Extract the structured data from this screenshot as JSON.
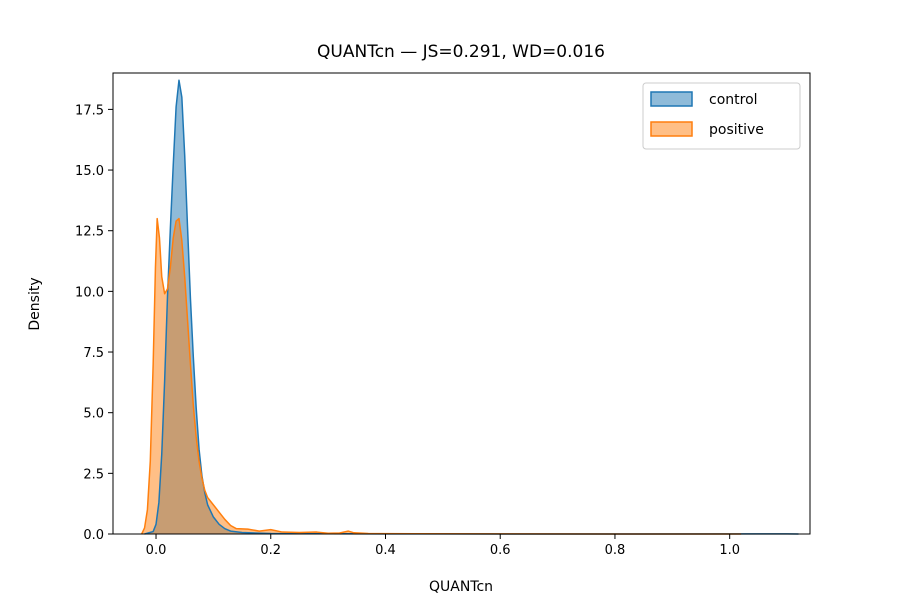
{
  "chart_data": {
    "type": "area",
    "title": "QUANTcn — JS=0.291, WD=0.016",
    "xlabel": "QUANTcn",
    "ylabel": "Density",
    "xlim": [
      -0.075,
      1.14
    ],
    "ylim": [
      0,
      19.0
    ],
    "xticks": [
      0.0,
      0.2,
      0.4,
      0.6,
      0.8,
      1.0
    ],
    "xtick_labels": [
      "0.0",
      "0.2",
      "0.4",
      "0.6",
      "0.8",
      "1.0"
    ],
    "yticks": [
      0.0,
      2.5,
      5.0,
      7.5,
      10.0,
      12.5,
      15.0,
      17.5
    ],
    "ytick_labels": [
      "0.0",
      "2.5",
      "5.0",
      "7.5",
      "10.0",
      "12.5",
      "15.0",
      "17.5"
    ],
    "grid": false,
    "legend_position": "top-right",
    "series": [
      {
        "name": "control",
        "color": "#1f77b4",
        "fill": "#8ab3d6",
        "points": [
          [
            -0.02,
            0
          ],
          [
            -0.005,
            0.1
          ],
          [
            0.0,
            0.4
          ],
          [
            0.005,
            1.3
          ],
          [
            0.01,
            3.3
          ],
          [
            0.015,
            6.3
          ],
          [
            0.02,
            9.8
          ],
          [
            0.025,
            12.6
          ],
          [
            0.03,
            15.2
          ],
          [
            0.035,
            17.6
          ],
          [
            0.04,
            18.7
          ],
          [
            0.045,
            18.0
          ],
          [
            0.05,
            15.6
          ],
          [
            0.055,
            12.6
          ],
          [
            0.06,
            9.7
          ],
          [
            0.065,
            7.3
          ],
          [
            0.07,
            5.2
          ],
          [
            0.075,
            3.5
          ],
          [
            0.08,
            2.4
          ],
          [
            0.085,
            1.7
          ],
          [
            0.09,
            1.2
          ],
          [
            0.1,
            0.7
          ],
          [
            0.11,
            0.4
          ],
          [
            0.12,
            0.22
          ],
          [
            0.13,
            0.12
          ],
          [
            0.15,
            0.06
          ],
          [
            0.2,
            0.02
          ],
          [
            0.3,
            0.01
          ],
          [
            0.5,
            0.003
          ],
          [
            0.8,
            0.002
          ],
          [
            1.1,
            0.004
          ],
          [
            1.12,
            0
          ]
        ]
      },
      {
        "name": "positive",
        "color": "#ff7f0e",
        "fill": "#ffb476",
        "points": [
          [
            -0.025,
            0
          ],
          [
            -0.02,
            0.25
          ],
          [
            -0.015,
            1.0
          ],
          [
            -0.01,
            3.0
          ],
          [
            -0.005,
            7.0
          ],
          [
            -0.001,
            11.0
          ],
          [
            0.002,
            13.0
          ],
          [
            0.006,
            12.2
          ],
          [
            0.01,
            10.6
          ],
          [
            0.015,
            9.9
          ],
          [
            0.02,
            10.1
          ],
          [
            0.025,
            11.0
          ],
          [
            0.03,
            12.2
          ],
          [
            0.035,
            12.9
          ],
          [
            0.04,
            13.0
          ],
          [
            0.045,
            12.1
          ],
          [
            0.05,
            10.6
          ],
          [
            0.055,
            8.8
          ],
          [
            0.06,
            7.0
          ],
          [
            0.065,
            5.3
          ],
          [
            0.07,
            4.0
          ],
          [
            0.075,
            3.0
          ],
          [
            0.08,
            2.3
          ],
          [
            0.085,
            1.8
          ],
          [
            0.09,
            1.5
          ],
          [
            0.1,
            1.2
          ],
          [
            0.11,
            0.9
          ],
          [
            0.12,
            0.6
          ],
          [
            0.13,
            0.35
          ],
          [
            0.14,
            0.22
          ],
          [
            0.16,
            0.2
          ],
          [
            0.18,
            0.12
          ],
          [
            0.2,
            0.18
          ],
          [
            0.22,
            0.08
          ],
          [
            0.25,
            0.06
          ],
          [
            0.28,
            0.08
          ],
          [
            0.3,
            0.03
          ],
          [
            0.32,
            0.04
          ],
          [
            0.335,
            0.12
          ],
          [
            0.345,
            0.05
          ],
          [
            0.37,
            0.02
          ],
          [
            0.45,
            0.01
          ],
          [
            0.6,
            0.006
          ],
          [
            0.8,
            0.002
          ],
          [
            1.0,
            0.001
          ],
          [
            1.02,
            0
          ]
        ]
      }
    ]
  }
}
